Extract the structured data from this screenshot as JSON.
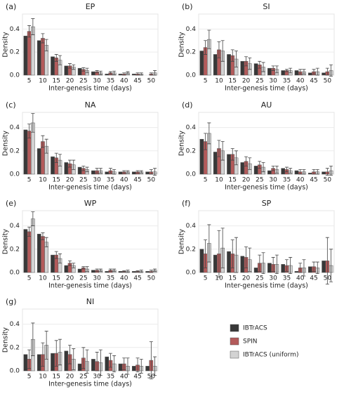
{
  "chart_data": [
    {
      "type": "bar",
      "label": "(a)",
      "title": "EP",
      "xlabel": "Inter-genesis time (days)",
      "ylabel": "Density",
      "categories": [
        "5",
        "10",
        "15",
        "20",
        "25",
        "30",
        "35",
        "40",
        "45",
        "50"
      ],
      "series": [
        {
          "name": "IBTrACS",
          "color": "#383838",
          "values": [
            0.34,
            0.3,
            0.16,
            0.08,
            0.06,
            0.03,
            0.01,
            0.01,
            0.01,
            0.0
          ]
        },
        {
          "name": "SPIN",
          "color": "#b35a5a",
          "values": [
            0.38,
            0.32,
            0.15,
            0.08,
            0.05,
            0.03,
            0.02,
            0.01,
            0.01,
            0.01
          ],
          "errors": [
            0.05,
            0.04,
            0.03,
            0.02,
            0.015,
            0.01,
            0.01,
            0.01,
            0.01,
            0.01
          ]
        },
        {
          "name": "IBTrACS (uniform)",
          "color": "#d3d3d3",
          "values": [
            0.42,
            0.26,
            0.13,
            0.07,
            0.04,
            0.02,
            0.02,
            0.02,
            0.01,
            0.02
          ],
          "errors": [
            0.07,
            0.05,
            0.04,
            0.02,
            0.02,
            0.015,
            0.015,
            0.01,
            0.01,
            0.02
          ]
        }
      ],
      "ylim": [
        0,
        0.53
      ],
      "yticks": [
        {
          "value": 0,
          "label": "0.0"
        },
        0.2,
        0.4
      ],
      "grid": true
    },
    {
      "type": "bar",
      "label": "(b)",
      "title": "SI",
      "xlabel": "Inter-genesis time (days)",
      "ylabel": "Density",
      "categories": [
        "5",
        "10",
        "15",
        "20",
        "25",
        "30",
        "35",
        "40",
        "45",
        "50"
      ],
      "series": [
        {
          "name": "IBTrACS",
          "color": "#383838",
          "values": [
            0.21,
            0.18,
            0.18,
            0.12,
            0.1,
            0.06,
            0.04,
            0.04,
            0.02,
            0.02
          ]
        },
        {
          "name": "SPIN",
          "color": "#b35a5a",
          "values": [
            0.24,
            0.22,
            0.17,
            0.12,
            0.09,
            0.06,
            0.04,
            0.03,
            0.03,
            0.03
          ],
          "errors": [
            0.06,
            0.07,
            0.05,
            0.04,
            0.03,
            0.02,
            0.01,
            0.02,
            0.02,
            0.03
          ]
        },
        {
          "name": "IBTrACS (uniform)",
          "color": "#d3d3d3",
          "values": [
            0.31,
            0.21,
            0.14,
            0.1,
            0.07,
            0.05,
            0.04,
            0.03,
            0.03,
            0.04
          ],
          "errors": [
            0.08,
            0.09,
            0.07,
            0.05,
            0.04,
            0.03,
            0.02,
            0.02,
            0.03,
            0.05
          ]
        }
      ],
      "ylim": [
        0,
        0.53
      ],
      "yticks": [
        {
          "value": 0,
          "label": "0.0"
        },
        0.2,
        0.4
      ],
      "grid": true
    },
    {
      "type": "bar",
      "label": "(c)",
      "title": "NA",
      "xlabel": "Inter-genesis time (days)",
      "ylabel": "Density",
      "categories": [
        "5",
        "10",
        "15",
        "20",
        "25",
        "30",
        "35",
        "40",
        "45",
        "50"
      ],
      "series": [
        {
          "name": "IBTrACS",
          "color": "#383838",
          "values": [
            0.38,
            0.22,
            0.15,
            0.1,
            0.06,
            0.03,
            0.02,
            0.02,
            0.02,
            0.02
          ]
        },
        {
          "name": "SPIN",
          "color": "#b35a5a",
          "values": [
            0.37,
            0.28,
            0.14,
            0.09,
            0.05,
            0.03,
            0.03,
            0.02,
            0.02,
            0.02
          ],
          "errors": [
            0.06,
            0.05,
            0.04,
            0.03,
            0.02,
            0.02,
            0.02,
            0.01,
            0.01,
            0.02
          ]
        },
        {
          "name": "IBTrACS (uniform)",
          "color": "#d3d3d3",
          "values": [
            0.44,
            0.24,
            0.12,
            0.08,
            0.04,
            0.03,
            0.02,
            0.02,
            0.02,
            0.02
          ],
          "errors": [
            0.08,
            0.06,
            0.05,
            0.04,
            0.02,
            0.02,
            0.02,
            0.01,
            0.01,
            0.03
          ]
        }
      ],
      "ylim": [
        0,
        0.53
      ],
      "yticks": [
        {
          "value": 0,
          "label": "0.0"
        },
        0.2,
        0.4
      ],
      "grid": true
    },
    {
      "type": "bar",
      "label": "(d)",
      "title": "AU",
      "xlabel": "Inter-genesis time (days)",
      "ylabel": "Density",
      "categories": [
        "5",
        "10",
        "15",
        "20",
        "25",
        "30",
        "35",
        "40",
        "45",
        "50"
      ],
      "series": [
        {
          "name": "IBTrACS",
          "color": "#383838",
          "values": [
            0.3,
            0.19,
            0.17,
            0.1,
            0.07,
            0.03,
            0.05,
            0.03,
            0.01,
            0.02
          ]
        },
        {
          "name": "SPIN",
          "color": "#b35a5a",
          "values": [
            0.28,
            0.22,
            0.17,
            0.11,
            0.08,
            0.05,
            0.04,
            0.02,
            0.02,
            0.02
          ],
          "errors": [
            0.07,
            0.07,
            0.05,
            0.04,
            0.03,
            0.02,
            0.02,
            0.02,
            0.02,
            0.03
          ]
        },
        {
          "name": "IBTrACS (uniform)",
          "color": "#d3d3d3",
          "values": [
            0.35,
            0.2,
            0.14,
            0.09,
            0.06,
            0.04,
            0.03,
            0.02,
            0.02,
            0.03
          ],
          "errors": [
            0.09,
            0.08,
            0.06,
            0.05,
            0.04,
            0.03,
            0.02,
            0.02,
            0.02,
            0.04
          ]
        }
      ],
      "ylim": [
        0,
        0.53
      ],
      "yticks": [
        {
          "value": 0,
          "label": "0.0"
        },
        0.2,
        0.4
      ],
      "grid": true
    },
    {
      "type": "bar",
      "label": "(e)",
      "title": "WP",
      "xlabel": "Inter-genesis time (days)",
      "ylabel": "Density",
      "categories": [
        "5",
        "10",
        "15",
        "20",
        "25",
        "30",
        "35",
        "40",
        "45",
        "50"
      ],
      "series": [
        {
          "name": "IBTrACS",
          "color": "#383838",
          "values": [
            0.37,
            0.33,
            0.15,
            0.06,
            0.03,
            0.02,
            0.01,
            0.01,
            0.01,
            0.01
          ]
        },
        {
          "name": "SPIN",
          "color": "#b35a5a",
          "values": [
            0.35,
            0.31,
            0.15,
            0.08,
            0.04,
            0.02,
            0.02,
            0.01,
            0.01,
            0.01
          ],
          "errors": [
            0.04,
            0.03,
            0.03,
            0.02,
            0.01,
            0.01,
            0.01,
            0.005,
            0.005,
            0.01
          ]
        },
        {
          "name": "IBTrACS (uniform)",
          "color": "#d3d3d3",
          "values": [
            0.46,
            0.26,
            0.12,
            0.06,
            0.03,
            0.02,
            0.02,
            0.01,
            0.01,
            0.02
          ],
          "errors": [
            0.06,
            0.04,
            0.04,
            0.02,
            0.02,
            0.01,
            0.01,
            0.01,
            0.01,
            0.01
          ]
        }
      ],
      "ylim": [
        0,
        0.53
      ],
      "yticks": [
        {
          "value": 0,
          "label": "0.0"
        },
        0.2,
        0.4
      ],
      "grid": true
    },
    {
      "type": "bar",
      "label": "(f)",
      "title": "SP",
      "xlabel": "Inter-genesis time (days)",
      "ylabel": "Density",
      "categories": [
        "5",
        "10",
        "15",
        "20",
        "25",
        "30",
        "35",
        "40",
        "45",
        "50"
      ],
      "series": [
        {
          "name": "IBTrACS",
          "color": "#383838",
          "values": [
            0.2,
            0.15,
            0.18,
            0.14,
            0.04,
            0.08,
            0.07,
            0.01,
            0.05,
            0.1
          ]
        },
        {
          "name": "SPIN",
          "color": "#b35a5a",
          "values": [
            0.16,
            0.16,
            0.16,
            0.13,
            0.08,
            0.07,
            0.06,
            0.04,
            0.05,
            0.1
          ],
          "errors": [
            0.12,
            0.2,
            0.12,
            0.09,
            0.07,
            0.06,
            0.05,
            0.04,
            0.04,
            0.2
          ]
        },
        {
          "name": "IBTrACS (uniform)",
          "color": "#d3d3d3",
          "values": [
            0.25,
            0.21,
            0.15,
            0.11,
            0.08,
            0.07,
            0.06,
            0.04,
            0.04,
            0.06
          ],
          "errors": [
            0.16,
            0.17,
            0.15,
            0.1,
            0.09,
            0.08,
            0.07,
            0.07,
            0.05,
            0.14
          ]
        }
      ],
      "ylim": [
        0,
        0.53
      ],
      "yticks": [
        {
          "value": 0,
          "label": "0.0"
        },
        0.2,
        0.4
      ],
      "grid": true
    },
    {
      "type": "bar",
      "label": "(g)",
      "title": "NI",
      "xlabel": "Inter-genesis time (days)",
      "ylabel": "Density",
      "categories": [
        "5",
        "10",
        "15",
        "20",
        "25",
        "30",
        "35",
        "40",
        "45",
        "50"
      ],
      "series": [
        {
          "name": "IBTrACS",
          "color": "#383838",
          "values": [
            0.14,
            0.14,
            0.15,
            0.17,
            0.06,
            0.1,
            0.12,
            0.06,
            0.04,
            0.04
          ]
        },
        {
          "name": "SPIN",
          "color": "#b35a5a",
          "values": [
            0.1,
            0.14,
            0.15,
            0.14,
            0.11,
            0.08,
            0.09,
            0.06,
            0.05,
            0.09
          ],
          "errors": [
            0.08,
            0.1,
            0.11,
            0.08,
            0.09,
            0.08,
            0.06,
            0.05,
            0.06,
            0.16
          ]
        },
        {
          "name": "IBTrACS (uniform)",
          "color": "#d3d3d3",
          "values": [
            0.27,
            0.22,
            0.16,
            0.1,
            0.08,
            0.07,
            0.06,
            0.04,
            0.04,
            0.04
          ],
          "errors": [
            0.14,
            0.12,
            0.11,
            0.09,
            0.1,
            0.11,
            0.07,
            0.07,
            0.06,
            0.08
          ]
        }
      ],
      "ylim": [
        0,
        0.53
      ],
      "yticks": [
        {
          "value": 0,
          "label": "0.0"
        },
        0.2,
        0.4
      ],
      "grid": true
    }
  ]
}
